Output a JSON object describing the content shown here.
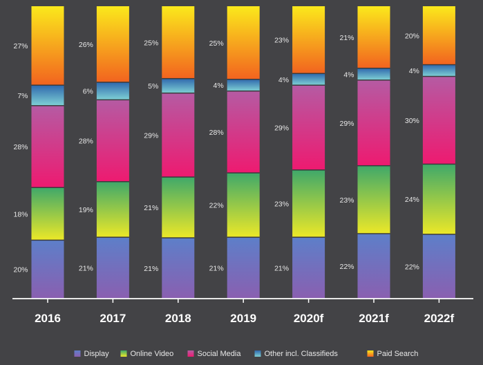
{
  "chart_data": {
    "type": "bar",
    "stacked": "percent",
    "categories": [
      "2016",
      "2017",
      "2018",
      "2019",
      "2020f",
      "2021f",
      "2022f"
    ],
    "series": [
      {
        "name": "Display",
        "values": [
          20,
          21,
          21,
          21,
          21,
          22,
          22
        ],
        "labels": [
          "20%",
          "21%",
          "21%",
          "21%",
          "21%",
          "22%",
          "22%"
        ],
        "colors": [
          "#8a5fb0",
          "#5d7fc9"
        ]
      },
      {
        "name": "Online Video",
        "values": [
          18,
          19,
          21,
          22,
          23,
          23,
          24
        ],
        "labels": [
          "18%",
          "19%",
          "21%",
          "22%",
          "23%",
          "23%",
          "24%"
        ],
        "colors": [
          "#ece828",
          "#3fa86a"
        ]
      },
      {
        "name": "Social Media",
        "values": [
          28,
          28,
          29,
          28,
          29,
          29,
          30
        ],
        "labels": [
          "28%",
          "28%",
          "29%",
          "28%",
          "29%",
          "29%",
          "30%"
        ],
        "colors": [
          "#ee1a70",
          "#b55ba3"
        ]
      },
      {
        "name": "Other incl. Classifieds",
        "values": [
          7,
          6,
          5,
          4,
          4,
          4,
          4
        ],
        "labels": [
          "7%",
          "6%",
          "5%",
          "4%",
          "4%",
          "4%",
          "4%"
        ],
        "colors": [
          "#7fd1d5",
          "#2f68ad"
        ]
      },
      {
        "name": "Paid Search",
        "values": [
          27,
          26,
          25,
          25,
          23,
          21,
          20
        ],
        "labels": [
          "27%",
          "26%",
          "25%",
          "25%",
          "23%",
          "21%",
          "20%"
        ],
        "colors": [
          "#f2631f",
          "#fbe91c"
        ]
      }
    ],
    "legend_position": "bottom",
    "grid": false
  }
}
